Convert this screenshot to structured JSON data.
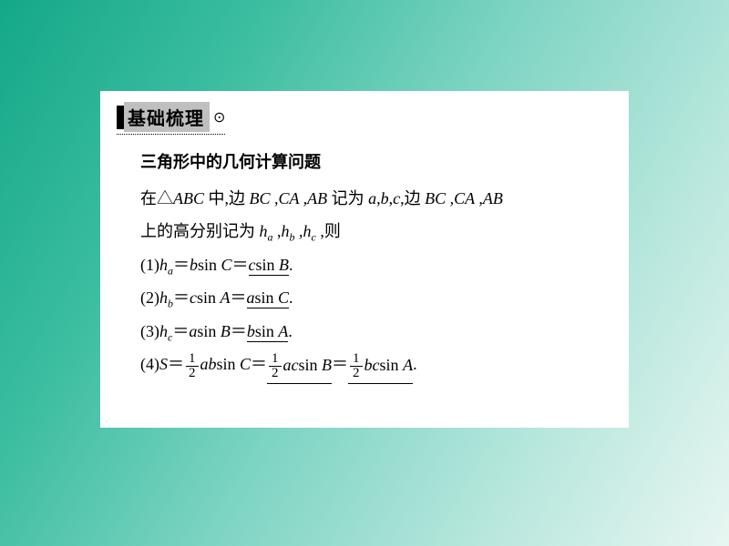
{
  "colors": {
    "gradient_start": "#14a888",
    "gradient_end": "#e8f6f2",
    "card_bg": "#ffffff",
    "header_bar": "#000000",
    "header_bg": "#bfbfbf",
    "text": "#000000",
    "underline": "#000000",
    "dotted_border": "#000000"
  },
  "typography": {
    "title_fontsize": 20,
    "body_fontsize": 18,
    "sub_fontsize": 12,
    "frac_fontsize": 15,
    "title_font": "SimHei",
    "body_font": "SimSun",
    "math_font": "Times New Roman"
  },
  "header": {
    "title": "基础梳理",
    "trailing_symbol": "⊙"
  },
  "section_title": "三角形中的几何计算问题",
  "intro": {
    "line1_pre": "在△",
    "tri": "ABC",
    "line1_mid": " 中,边 ",
    "sides_list": "BC ,CA ,AB",
    "line1_mid2": " 记为 ",
    "abc_list_a": "a",
    "abc_list_b": "b",
    "abc_list_c": "c",
    "comma": ",",
    "line1_tail": ",边 ",
    "sides_list2": "BC ,CA ,AB",
    "line2_pre": "上的高分别记为 ",
    "h": "h",
    "sub_a": "a",
    "sub_b": "b",
    "sub_c": "c",
    "line2_tail": " ,则"
  },
  "items": {
    "1": {
      "label": "(1)",
      "lhs_h": "h",
      "lhs_sub": "a",
      "eq": "＝",
      "t1_coef": "b",
      "t1_sin": "sin ",
      "t1_ang": "C",
      "t2_coef": "c",
      "t2_sin": "sin ",
      "t2_ang": "B",
      "period": "."
    },
    "2": {
      "label": "(2)",
      "lhs_h": "h",
      "lhs_sub": "b",
      "eq": "＝",
      "t1_coef": "c",
      "t1_sin": "sin ",
      "t1_ang": "A",
      "t2_coef": "a",
      "t2_sin": "sin ",
      "t2_ang": "C",
      "period": "."
    },
    "3": {
      "label": "(3)",
      "lhs_h": "h",
      "lhs_sub": "c",
      "eq": "＝",
      "t1_coef": "a",
      "t1_sin": "sin ",
      "t1_ang": "B",
      "t2_coef": "b",
      "t2_sin": "sin ",
      "t2_ang": "A",
      "period": "."
    },
    "4": {
      "label": "(4)",
      "S": "S",
      "eq": "＝",
      "half_num": "1",
      "half_den": "2",
      "t1_coef": "ab",
      "t1_sin": "sin ",
      "t1_ang": "C",
      "t2_coef": "ac",
      "t2_sin": "sin ",
      "t2_ang": "B",
      "t3_coef": "bc",
      "t3_sin": "sin ",
      "t3_ang": "A",
      "period": "."
    }
  }
}
